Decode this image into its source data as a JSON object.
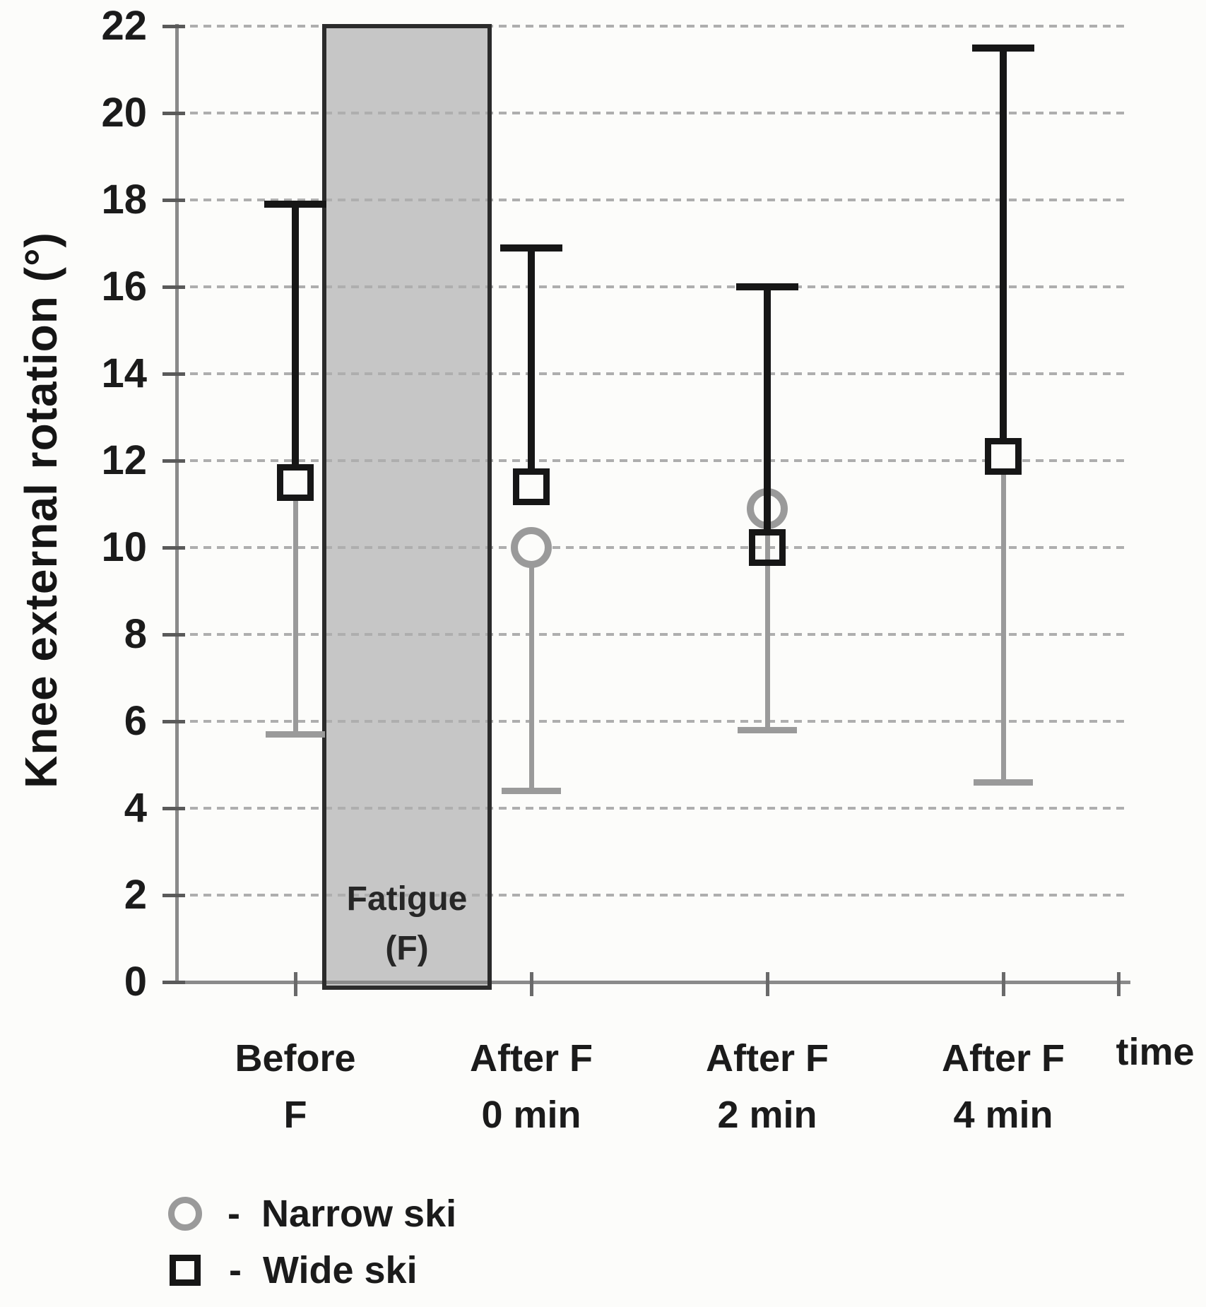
{
  "chart_data": {
    "type": "errorbar",
    "title": "",
    "ylabel": "Knee external rotation (°)",
    "xlabel": "time",
    "ylim": [
      0,
      22
    ],
    "ytick_step": 2,
    "yticks": [
      0,
      2,
      4,
      6,
      8,
      10,
      12,
      14,
      16,
      18,
      20,
      22
    ],
    "grid": "dashed horizontal",
    "categories": [
      "Before F",
      "After F 0 min",
      "After F 2 min",
      "After F 4 min"
    ],
    "category_label_lines": [
      [
        "Before",
        "F"
      ],
      [
        "After F",
        "0 min"
      ],
      [
        "After F",
        "2 min"
      ],
      [
        "After F",
        "4 min"
      ]
    ],
    "series": [
      {
        "name": "Narrow ski",
        "marker": "circle",
        "color": "#9a9a9a",
        "values": [
          null,
          10.0,
          10.9,
          null
        ]
      },
      {
        "name": "Wide ski",
        "marker": "square",
        "color": "#161616",
        "values": [
          11.5,
          11.4,
          10.0,
          12.1
        ]
      }
    ],
    "upper_whisker_tops": [
      17.9,
      16.9,
      16.0,
      21.5
    ],
    "lower_whisker_bottoms": [
      5.7,
      4.4,
      5.8,
      4.6
    ],
    "fatigue_band": {
      "label_lines": [
        "Fatigue",
        "(F)"
      ],
      "position": "between Before F and After F 0 min",
      "y_range": [
        0,
        22
      ]
    },
    "legend": [
      {
        "marker": "circle",
        "label": "-  Narrow ski"
      },
      {
        "marker": "square",
        "label": "-  Wide ski"
      }
    ],
    "colors": {
      "wide_ski": "#161616",
      "narrow_ski": "#9a9a9a",
      "band_fill": "#c6c6c6",
      "band_border": "#2b2b2b",
      "axis": "#8a8a8a",
      "gridline": "#aeaeae",
      "tick_label": "#1b1b1b"
    }
  }
}
